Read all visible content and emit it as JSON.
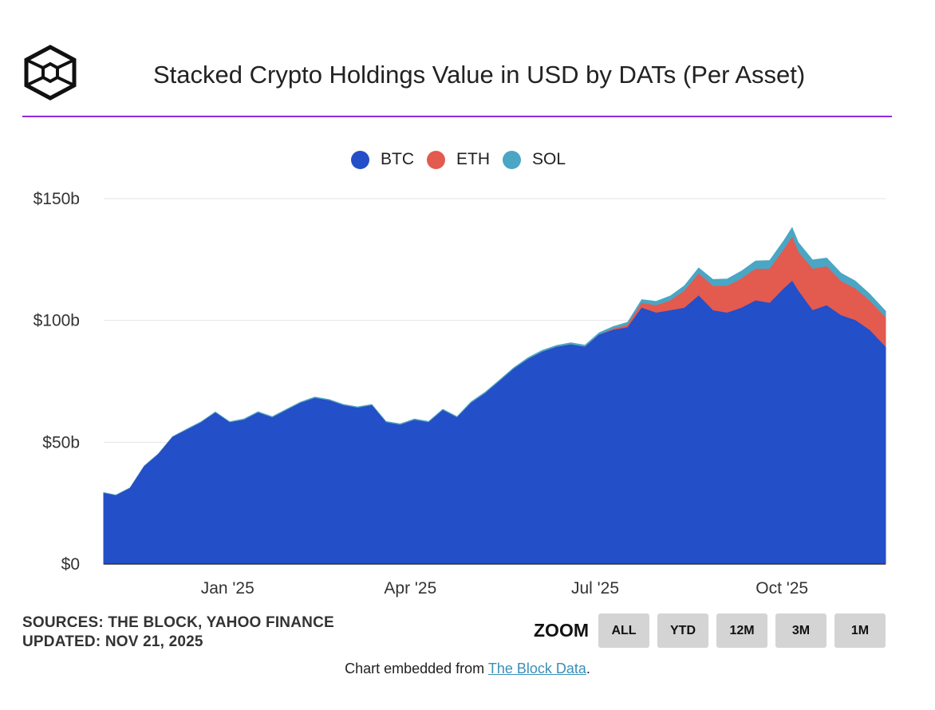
{
  "header": {
    "title": "Stacked Crypto Holdings Value in USD by DATs (Per Asset)"
  },
  "legend": [
    {
      "label": "BTC",
      "color": "#234fc8"
    },
    {
      "label": "ETH",
      "color": "#e35a4f"
    },
    {
      "label": "SOL",
      "color": "#4aa6c4"
    }
  ],
  "footer": {
    "sources": "SOURCES: THE BLOCK, YAHOO FINANCE",
    "updated": "UPDATED: NOV 21, 2025",
    "zoom_label": "ZOOM",
    "zoom_buttons": [
      "ALL",
      "YTD",
      "12M",
      "3M",
      "1M"
    ],
    "embed_prefix": "Chart embedded from ",
    "embed_link": "The Block Data",
    "embed_suffix": "."
  },
  "chart_data": {
    "type": "area",
    "stacked": true,
    "title": "Stacked Crypto Holdings Value in USD by DATs (Per Asset)",
    "x_ticks": [
      "Jan '25",
      "Apr '25",
      "Jul '25",
      "Oct '25"
    ],
    "y_ticks": [
      "$0",
      "$50b",
      "$100b",
      "$150b"
    ],
    "ylim": [
      0,
      150
    ],
    "grid": true,
    "legend_position": "top-center",
    "x": [
      "2024-11-01",
      "2024-11-07",
      "2024-11-14",
      "2024-11-21",
      "2024-11-28",
      "2024-12-05",
      "2024-12-12",
      "2024-12-19",
      "2024-12-26",
      "2025-01-02",
      "2025-01-09",
      "2025-01-16",
      "2025-01-23",
      "2025-01-30",
      "2025-02-06",
      "2025-02-13",
      "2025-02-20",
      "2025-02-27",
      "2025-03-06",
      "2025-03-13",
      "2025-03-20",
      "2025-03-27",
      "2025-04-03",
      "2025-04-10",
      "2025-04-17",
      "2025-04-24",
      "2025-05-01",
      "2025-05-08",
      "2025-05-15",
      "2025-05-22",
      "2025-05-29",
      "2025-06-05",
      "2025-06-12",
      "2025-06-19",
      "2025-06-26",
      "2025-07-03",
      "2025-07-10",
      "2025-07-17",
      "2025-07-24",
      "2025-07-31",
      "2025-08-07",
      "2025-08-14",
      "2025-08-21",
      "2025-08-28",
      "2025-09-04",
      "2025-09-11",
      "2025-09-18",
      "2025-09-25",
      "2025-10-02",
      "2025-10-06",
      "2025-10-09",
      "2025-10-16",
      "2025-10-23",
      "2025-10-30",
      "2025-11-06",
      "2025-11-13",
      "2025-11-21"
    ],
    "series": [
      {
        "name": "BTC",
        "color": "#234fc8",
        "values": [
          29,
          28,
          31,
          40,
          45,
          52,
          55,
          58,
          62,
          58,
          59,
          62,
          60,
          63,
          66,
          68,
          67,
          65,
          64,
          65,
          58,
          57,
          59,
          58,
          63,
          60,
          66,
          70,
          75,
          80,
          84,
          87,
          89,
          90,
          89,
          94,
          96,
          97,
          105,
          103,
          104,
          105,
          110,
          104,
          103,
          105,
          108,
          107,
          113,
          116,
          112,
          104,
          106,
          102,
          100,
          96,
          89
        ]
      },
      {
        "name": "ETH",
        "color": "#e35a4f",
        "values": [
          0,
          0,
          0,
          0,
          0,
          0,
          0,
          0,
          0,
          0,
          0,
          0,
          0,
          0,
          0,
          0,
          0,
          0,
          0,
          0,
          0,
          0,
          0,
          0,
          0,
          0,
          0,
          0,
          0,
          0,
          0,
          0,
          0,
          0,
          0,
          0,
          0.5,
          1,
          2,
          3,
          4,
          7,
          9,
          10,
          11,
          12,
          13,
          14,
          16,
          18,
          16,
          17,
          16,
          14,
          13,
          12,
          12
        ]
      },
      {
        "name": "SOL",
        "color": "#4aa6c4",
        "values": [
          0.3,
          0.3,
          0.3,
          0.3,
          0.3,
          0.3,
          0.4,
          0.4,
          0.4,
          0.4,
          0.5,
          0.5,
          0.5,
          0.5,
          0.5,
          0.5,
          0.5,
          0.5,
          0.5,
          0.5,
          0.5,
          0.5,
          0.5,
          0.5,
          0.5,
          0.5,
          0.6,
          0.6,
          0.6,
          0.6,
          0.7,
          0.7,
          0.7,
          0.8,
          0.8,
          0.9,
          1,
          1.2,
          1.5,
          1.8,
          2,
          2.2,
          2.5,
          2.8,
          3,
          3.2,
          3.4,
          3.6,
          3.8,
          4,
          4,
          3.8,
          3.6,
          3.4,
          3.2,
          3,
          2.8
        ]
      }
    ]
  }
}
